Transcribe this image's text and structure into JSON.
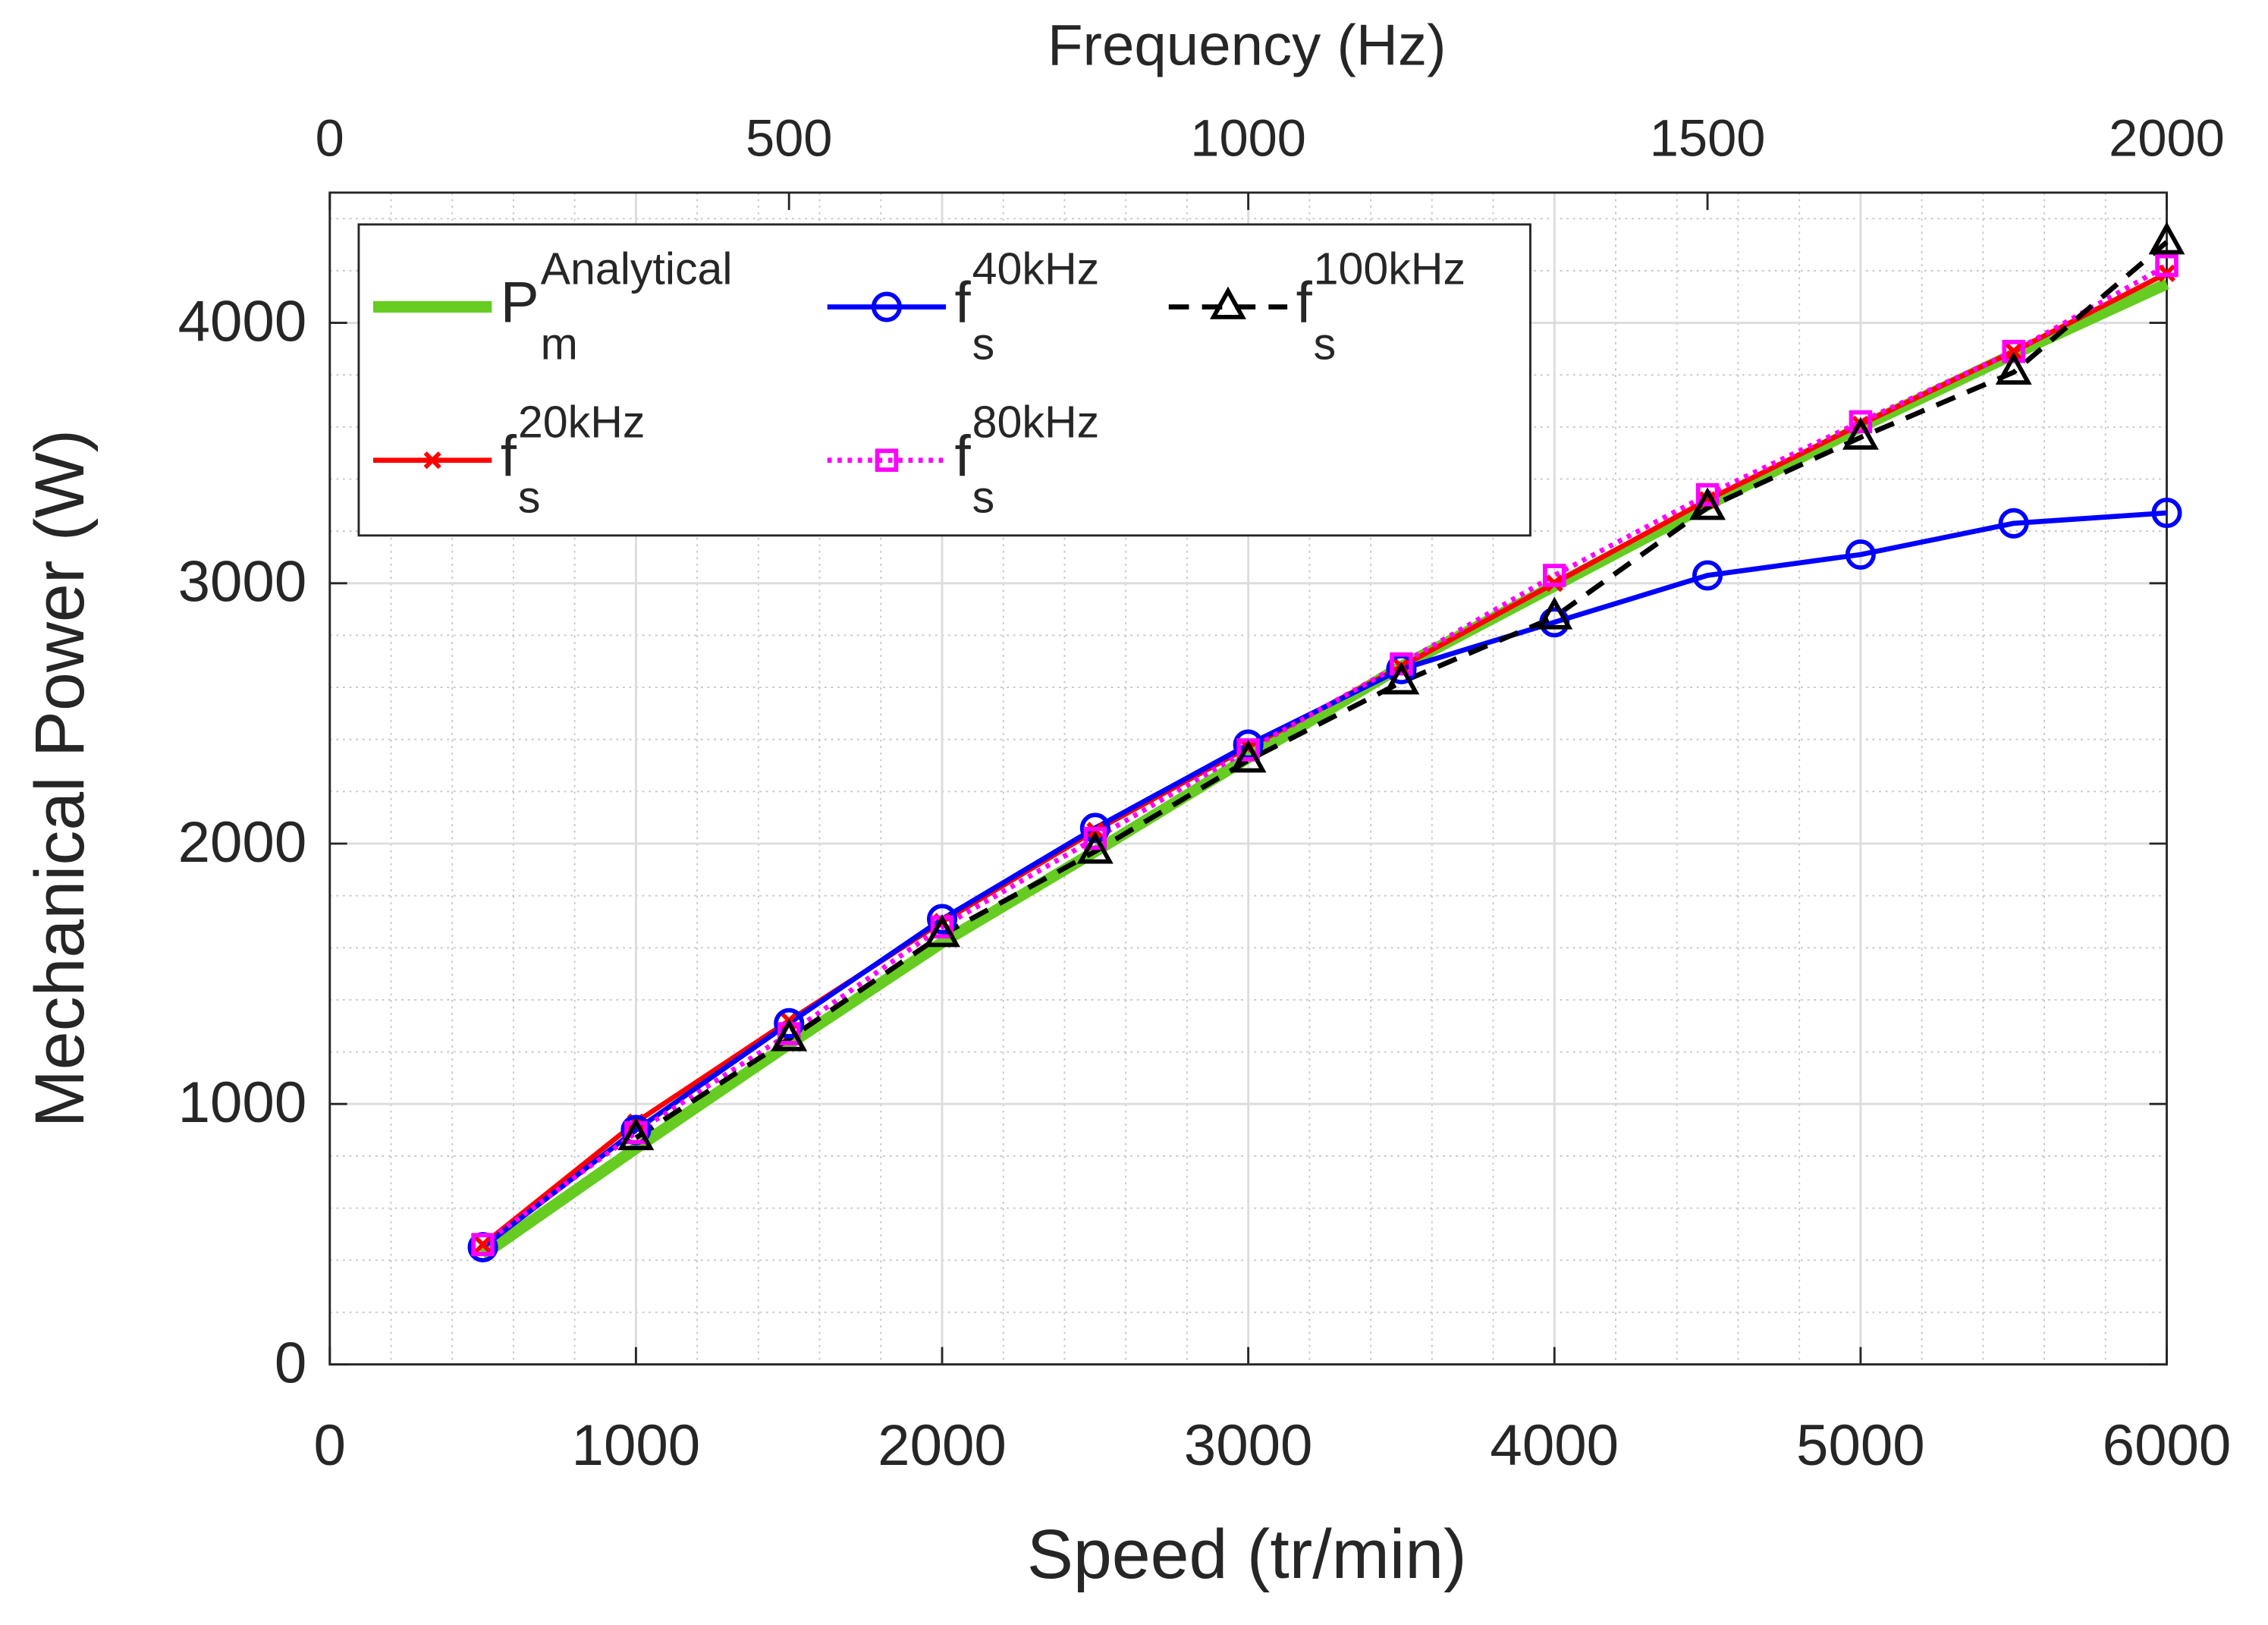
{
  "chart_data": {
    "type": "line",
    "xlabel": "Speed (tr/min)",
    "ylabel": "Mechanical Power (W)",
    "x2label": "Frequency (Hz)",
    "x": [
      500,
      1000,
      1500,
      2000,
      2500,
      3000,
      3500,
      4000,
      4500,
      5000,
      5500,
      6000
    ],
    "xlim": [
      0,
      6000
    ],
    "xticks": [
      0,
      1000,
      2000,
      3000,
      4000,
      5000,
      6000
    ],
    "x2lim": [
      0,
      2000
    ],
    "x2ticks": [
      0,
      500,
      1000,
      1500,
      2000
    ],
    "ylim": [
      0,
      4500
    ],
    "yticks": [
      0,
      1000,
      2000,
      3000,
      4000
    ],
    "grid": true,
    "minor_grid": true,
    "legend": "top-left",
    "legend_columns": 3,
    "series": [
      {
        "name": {
          "base": "P",
          "sub": "m",
          "sup": "Analytical"
        },
        "color": "#66cc22",
        "linestyle": "-",
        "marker": "none",
        "linewidth": 8,
        "values": [
          420,
          830,
          1230,
          1620,
          1970,
          2330,
          2680,
          2990,
          3300,
          3600,
          3880,
          4150
        ]
      },
      {
        "name": {
          "base": "f",
          "sub": "s",
          "sup": "20kHz"
        },
        "color": "#ff0000",
        "linestyle": "-",
        "marker": "x",
        "linewidth": 3.5,
        "values": [
          460,
          930,
          1320,
          1700,
          2050,
          2370,
          2680,
          3000,
          3320,
          3610,
          3890,
          4190
        ]
      },
      {
        "name": {
          "base": "f",
          "sub": "s",
          "sup": "40kHz"
        },
        "color": "#0000ff",
        "linestyle": "-",
        "marker": "o",
        "linewidth": 3.5,
        "values": [
          450,
          900,
          1310,
          1710,
          2060,
          2380,
          2670,
          2850,
          3030,
          3110,
          3230,
          3270
        ]
      },
      {
        "name": {
          "base": "f",
          "sub": "s",
          "sup": "80kHz"
        },
        "color": "#ff00ff",
        "linestyle": ":",
        "marker": "s",
        "linewidth": 3.5,
        "values": [
          460,
          890,
          1270,
          1680,
          2020,
          2360,
          2690,
          3030,
          3340,
          3620,
          3890,
          4220
        ]
      },
      {
        "name": {
          "base": "f",
          "sub": "s",
          "sup": "100kHz"
        },
        "color": "#000000",
        "linestyle": "--",
        "marker": "^",
        "linewidth": 3.5,
        "values": [
          null,
          870,
          1250,
          1650,
          1970,
          2320,
          2620,
          2870,
          3290,
          3560,
          3810,
          4310
        ]
      }
    ]
  }
}
